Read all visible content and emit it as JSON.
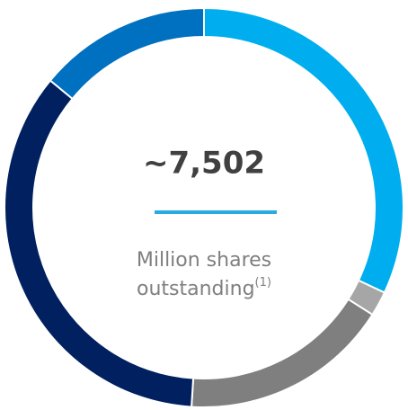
{
  "chart_data": {
    "type": "donut",
    "title": "~7,502",
    "subtitle": [
      "Million shares",
      "outstanding"
    ],
    "footnote_marker": "(1)",
    "values": [
      32,
      2,
      17,
      35,
      14
    ],
    "colors": [
      "#00aeef",
      "#a6a6a6",
      "#7f7f7f",
      "#002060",
      "#0070c0"
    ]
  }
}
